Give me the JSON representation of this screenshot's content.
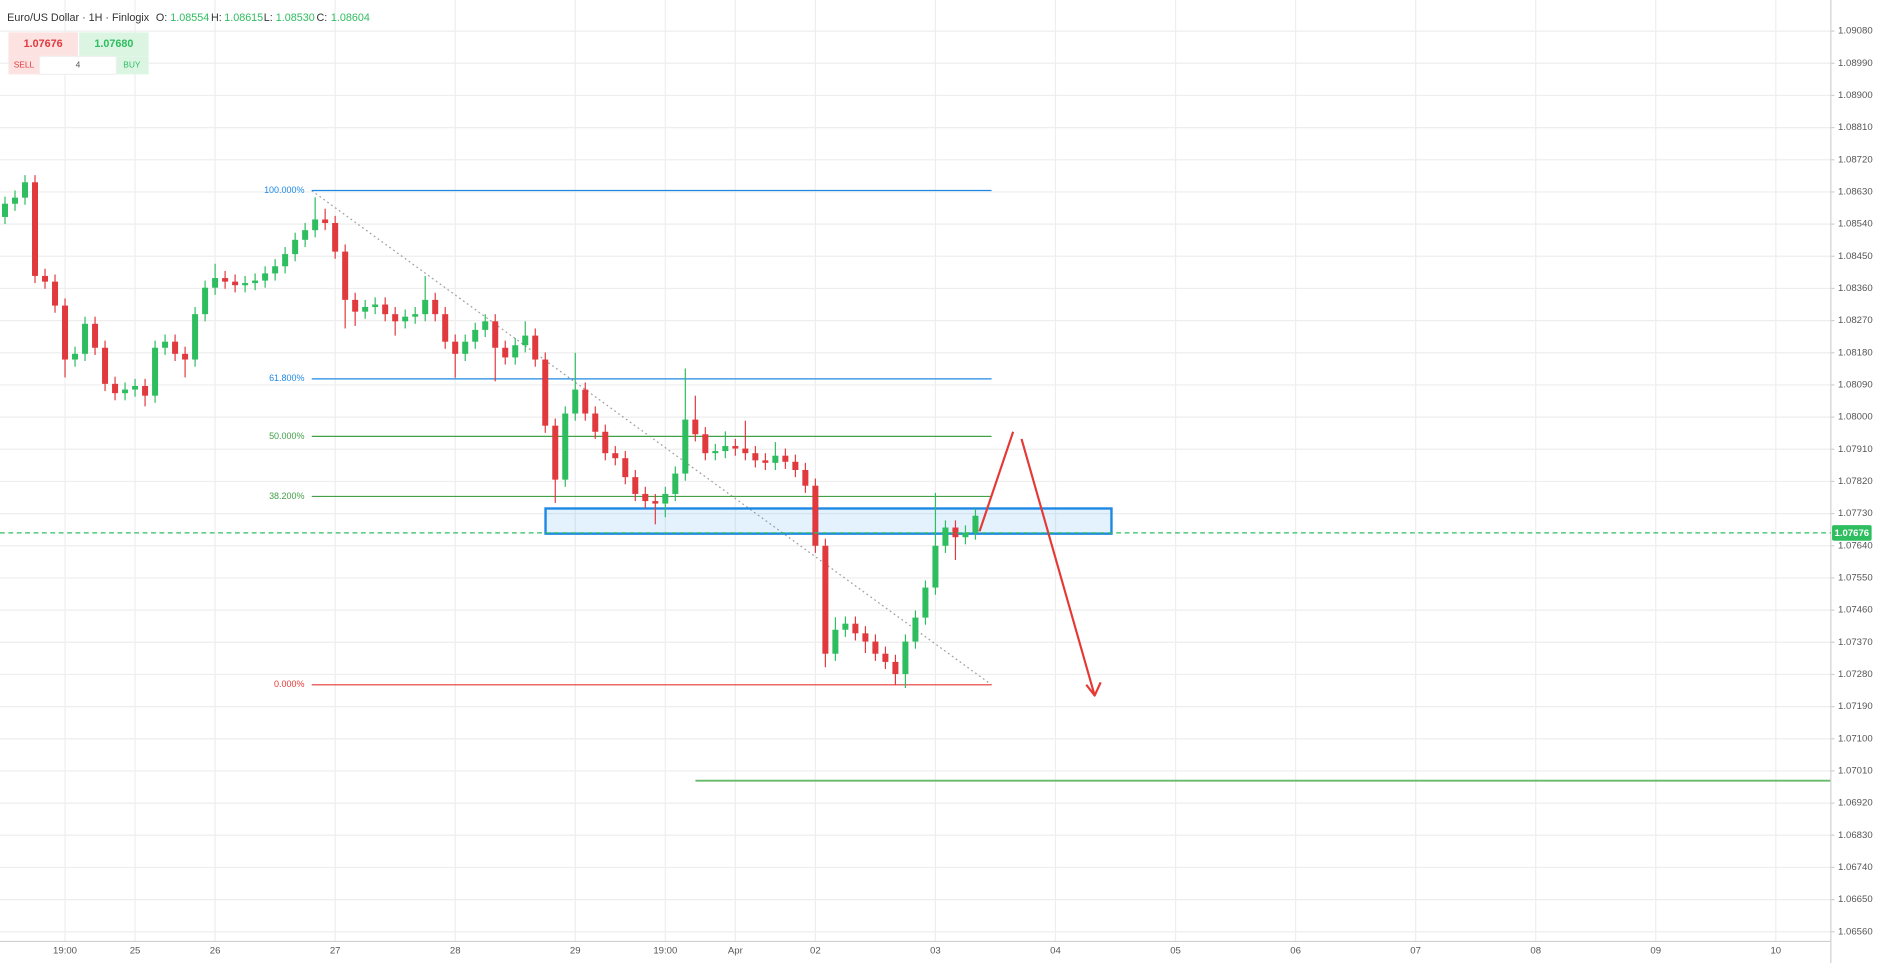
{
  "header": {
    "title": "Euro/US Dollar · 1H · Finlogix",
    "o_label": "O:",
    "o_value": "1.08554",
    "h_label": "H:",
    "h_value": "1.08615",
    "l_label": "L:",
    "l_value": "1.08530",
    "c_label": "C:",
    "c_value": "1.08604"
  },
  "trade": {
    "sell_price": "1.07676",
    "buy_price": "1.07680",
    "sell_label": "SELL",
    "quantity": "4",
    "buy_label": "BUY"
  },
  "chart_data": {
    "type": "candlestick",
    "up_color": "#2ebd5f",
    "down_color": "#e0393e",
    "grid": true,
    "ylim": [
      1.06533,
      1.09167
    ],
    "yticks": [
      {
        "value": 1.0908,
        "label": "1.09080"
      },
      {
        "value": 1.0899,
        "label": "1.08990"
      },
      {
        "value": 1.089,
        "label": "1.08900"
      },
      {
        "value": 1.0881,
        "label": "1.08810"
      },
      {
        "value": 1.0872,
        "label": "1.08720"
      },
      {
        "value": 1.0863,
        "label": "1.08630"
      },
      {
        "value": 1.0854,
        "label": "1.08540"
      },
      {
        "value": 1.0845,
        "label": "1.08450"
      },
      {
        "value": 1.0836,
        "label": "1.08360"
      },
      {
        "value": 1.0827,
        "label": "1.08270"
      },
      {
        "value": 1.0818,
        "label": "1.08180"
      },
      {
        "value": 1.0809,
        "label": "1.08090"
      },
      {
        "value": 1.08,
        "label": "1.08000"
      },
      {
        "value": 1.0791,
        "label": "1.07910"
      },
      {
        "value": 1.0782,
        "label": "1.07820"
      },
      {
        "value": 1.0773,
        "label": "1.07730"
      },
      {
        "value": 1.0764,
        "label": "1.07640"
      },
      {
        "value": 1.0755,
        "label": "1.07550"
      },
      {
        "value": 1.0746,
        "label": "1.07460"
      },
      {
        "value": 1.0737,
        "label": "1.07370"
      },
      {
        "value": 1.0728,
        "label": "1.07280"
      },
      {
        "value": 1.0719,
        "label": "1.07190"
      },
      {
        "value": 1.071,
        "label": "1.07100"
      },
      {
        "value": 1.0701,
        "label": "1.07010"
      },
      {
        "value": 1.0692,
        "label": "1.06920"
      },
      {
        "value": 1.0683,
        "label": "1.06830"
      },
      {
        "value": 1.0674,
        "label": "1.06740"
      },
      {
        "value": 1.0665,
        "label": "1.06650"
      },
      {
        "value": 1.0656,
        "label": "1.06560"
      }
    ],
    "current_price": {
      "value": 1.07676,
      "label": "1.07676",
      "color": "#2ebd5f"
    },
    "fib": {
      "levels": [
        {
          "label": "100.000%",
          "value": 1.08634,
          "color": "#1e88e5"
        },
        {
          "label": "61.800%",
          "value": 1.08107,
          "color": "#1e88e5"
        },
        {
          "label": "50.000%",
          "value": 1.07946,
          "color": "#43a047"
        },
        {
          "label": "38.200%",
          "value": 1.07778,
          "color": "#43a047"
        },
        {
          "label": "0.000%",
          "value": 1.07251,
          "color": "#e53935"
        }
      ]
    },
    "categories": [
      null,
      null,
      null,
      null,
      null,
      null,
      "19:00",
      null,
      null,
      null,
      null,
      null,
      null,
      "25",
      null,
      null,
      null,
      null,
      null,
      null,
      null,
      "26",
      null,
      null,
      null,
      null,
      null,
      null,
      null,
      null,
      null,
      null,
      null,
      "27",
      null,
      null,
      null,
      null,
      null,
      null,
      null,
      null,
      null,
      null,
      null,
      "28",
      null,
      null,
      null,
      null,
      null,
      null,
      null,
      null,
      null,
      null,
      null,
      "29",
      null,
      null,
      null,
      null,
      null,
      null,
      null,
      null,
      "19:00",
      null,
      null,
      null,
      null,
      null,
      null,
      "Apr",
      null,
      null,
      null,
      null,
      null,
      null,
      null,
      "02",
      null,
      null,
      null,
      null,
      null,
      null,
      null,
      null,
      null,
      null,
      null,
      "03",
      null,
      null,
      null,
      null,
      null,
      null,
      null,
      null,
      null,
      null,
      null,
      "04",
      null,
      null,
      null,
      null,
      null,
      null,
      null,
      null,
      null,
      null,
      null,
      "05",
      null,
      null,
      null,
      null,
      null,
      null,
      null,
      null,
      null,
      null,
      null,
      "06",
      null,
      null,
      null,
      null,
      null,
      null,
      null,
      null,
      null,
      null,
      null,
      "07",
      null,
      null,
      null,
      null,
      null,
      null,
      null,
      null,
      null,
      null,
      null,
      "08",
      null,
      null,
      null,
      null,
      null,
      null,
      null,
      null,
      null,
      null,
      null,
      "09",
      null,
      null,
      null,
      null,
      null,
      null,
      null,
      null,
      null,
      null,
      null,
      "10",
      null,
      null,
      null,
      null,
      null
    ],
    "candles": [
      [
        1.0856,
        1.08617,
        1.0854,
        1.08597
      ],
      [
        1.08597,
        1.08634,
        1.08577,
        1.08614
      ],
      [
        1.08614,
        1.08677,
        1.08594,
        1.08657
      ],
      [
        1.08657,
        1.08677,
        1.08375,
        1.08395
      ],
      [
        1.08395,
        1.08415,
        1.08359,
        1.08379
      ],
      [
        1.08379,
        1.08399,
        1.08292,
        1.08312
      ],
      [
        1.08312,
        1.08332,
        1.08111,
        1.08161
      ],
      [
        1.08161,
        1.08197,
        1.08141,
        1.08177
      ],
      [
        1.08177,
        1.08281,
        1.08157,
        1.08261
      ],
      [
        1.08261,
        1.08281,
        1.08174,
        1.08194
      ],
      [
        1.08194,
        1.08214,
        1.08073,
        1.08093
      ],
      [
        1.08093,
        1.08113,
        1.08047,
        1.08067
      ],
      [
        1.08067,
        1.08097,
        1.08047,
        1.08077
      ],
      [
        1.08077,
        1.08107,
        1.08057,
        1.08087
      ],
      [
        1.08087,
        1.08107,
        1.0803,
        1.0806
      ],
      [
        1.0806,
        1.08214,
        1.0804,
        1.08194
      ],
      [
        1.08194,
        1.08231,
        1.08174,
        1.08211
      ],
      [
        1.08211,
        1.08231,
        1.08157,
        1.08177
      ],
      [
        1.08177,
        1.08197,
        1.08111,
        1.08161
      ],
      [
        1.08161,
        1.08308,
        1.08141,
        1.08288
      ],
      [
        1.08288,
        1.08382,
        1.08268,
        1.08362
      ],
      [
        1.08362,
        1.08429,
        1.08342,
        1.08389
      ],
      [
        1.08389,
        1.08409,
        1.08359,
        1.08379
      ],
      [
        1.08379,
        1.08399,
        1.08349,
        1.08369
      ],
      [
        1.08369,
        1.08395,
        1.08349,
        1.08375
      ],
      [
        1.08375,
        1.08402,
        1.08355,
        1.08382
      ],
      [
        1.08382,
        1.08422,
        1.08362,
        1.08402
      ],
      [
        1.08402,
        1.08442,
        1.08382,
        1.08422
      ],
      [
        1.08422,
        1.08476,
        1.08402,
        1.08456
      ],
      [
        1.08456,
        1.08516,
        1.08436,
        1.08496
      ],
      [
        1.08496,
        1.08543,
        1.08476,
        1.08523
      ],
      [
        1.08523,
        1.08615,
        1.08503,
        1.08553
      ],
      [
        1.08553,
        1.08583,
        1.08523,
        1.08543
      ],
      [
        1.08543,
        1.08563,
        1.08443,
        1.08463
      ],
      [
        1.08463,
        1.08483,
        1.08248,
        1.08328
      ],
      [
        1.08328,
        1.08348,
        1.08255,
        1.08295
      ],
      [
        1.08295,
        1.08328,
        1.08275,
        1.08308
      ],
      [
        1.08308,
        1.08335,
        1.08288,
        1.08315
      ],
      [
        1.08315,
        1.08335,
        1.08268,
        1.08288
      ],
      [
        1.08288,
        1.08308,
        1.08228,
        1.08268
      ],
      [
        1.08268,
        1.08301,
        1.08248,
        1.08281
      ],
      [
        1.08281,
        1.08308,
        1.08261,
        1.08288
      ],
      [
        1.08288,
        1.08395,
        1.08268,
        1.08328
      ],
      [
        1.08328,
        1.08348,
        1.08268,
        1.08288
      ],
      [
        1.08288,
        1.08308,
        1.08191,
        1.08211
      ],
      [
        1.08211,
        1.08231,
        1.0811,
        1.08177
      ],
      [
        1.08177,
        1.08231,
        1.08157,
        1.08211
      ],
      [
        1.08211,
        1.08264,
        1.08191,
        1.08244
      ],
      [
        1.08244,
        1.08288,
        1.08224,
        1.08268
      ],
      [
        1.08268,
        1.08288,
        1.081,
        1.08194
      ],
      [
        1.08194,
        1.08214,
        1.08147,
        1.08167
      ],
      [
        1.08167,
        1.08221,
        1.08147,
        1.08201
      ],
      [
        1.08201,
        1.08268,
        1.08181,
        1.08228
      ],
      [
        1.08228,
        1.08248,
        1.08141,
        1.08161
      ],
      [
        1.08161,
        1.08181,
        1.07956,
        1.07976
      ],
      [
        1.07976,
        1.07996,
        1.0776,
        1.07825
      ],
      [
        1.07825,
        1.0803,
        1.07805,
        1.0801
      ],
      [
        1.0801,
        1.0818,
        1.0799,
        1.08077
      ],
      [
        1.08077,
        1.08097,
        1.0799,
        1.0801
      ],
      [
        1.0801,
        1.0803,
        1.07939,
        1.07959
      ],
      [
        1.07959,
        1.07979,
        1.07879,
        1.07899
      ],
      [
        1.07899,
        1.07919,
        1.07865,
        1.07885
      ],
      [
        1.07885,
        1.07905,
        1.07812,
        1.07832
      ],
      [
        1.07832,
        1.07852,
        1.07765,
        1.07785
      ],
      [
        1.07785,
        1.07805,
        1.07745,
        1.07765
      ],
      [
        1.07765,
        1.07785,
        1.077,
        1.07758
      ],
      [
        1.07758,
        1.07805,
        1.0772,
        1.07785
      ],
      [
        1.07785,
        1.07862,
        1.07765,
        1.07842
      ],
      [
        1.07842,
        1.08136,
        1.07822,
        1.07993
      ],
      [
        1.07993,
        1.0806,
        1.07932,
        1.07952
      ],
      [
        1.07952,
        1.07972,
        1.07879,
        1.07899
      ],
      [
        1.07899,
        1.07925,
        1.07879,
        1.07905
      ],
      [
        1.07905,
        1.0796,
        1.07885,
        1.07919
      ],
      [
        1.07919,
        1.07939,
        1.07892,
        1.07912
      ],
      [
        1.07912,
        1.0799,
        1.07879,
        1.07899
      ],
      [
        1.07899,
        1.07919,
        1.07859,
        1.07879
      ],
      [
        1.07879,
        1.07899,
        1.07852,
        1.07872
      ],
      [
        1.07872,
        1.0793,
        1.07852,
        1.07892
      ],
      [
        1.07892,
        1.07912,
        1.07855,
        1.07875
      ],
      [
        1.07875,
        1.07895,
        1.07832,
        1.07852
      ],
      [
        1.07852,
        1.07872,
        1.07788,
        1.07808
      ],
      [
        1.07808,
        1.07828,
        1.0762,
        1.0764
      ],
      [
        1.0764,
        1.0766,
        1.073,
        1.07338
      ],
      [
        1.07338,
        1.0744,
        1.07318,
        1.07405
      ],
      [
        1.07405,
        1.07442,
        1.07385,
        1.07422
      ],
      [
        1.07422,
        1.07442,
        1.07375,
        1.07395
      ],
      [
        1.07395,
        1.07415,
        1.0734,
        1.07372
      ],
      [
        1.07372,
        1.07392,
        1.07318,
        1.07338
      ],
      [
        1.07338,
        1.07358,
        1.07295,
        1.07315
      ],
      [
        1.07315,
        1.07335,
        1.0725,
        1.07281
      ],
      [
        1.07281,
        1.07392,
        1.07242,
        1.07372
      ],
      [
        1.07372,
        1.07459,
        1.07352,
        1.07439
      ],
      [
        1.07439,
        1.07543,
        1.07419,
        1.07523
      ],
      [
        1.07523,
        1.07788,
        1.07503,
        1.0764
      ],
      [
        1.0764,
        1.07711,
        1.0762,
        1.07691
      ],
      [
        1.07691,
        1.07711,
        1.076,
        1.07664
      ],
      [
        1.07664,
        1.07697,
        1.07644,
        1.07677
      ],
      [
        1.07677,
        1.07744,
        1.07657,
        1.07724
      ],
      null,
      null,
      null,
      null,
      null,
      null,
      null,
      null,
      null,
      null,
      null,
      null,
      null,
      null,
      null,
      null,
      null,
      null,
      null,
      null,
      null,
      null,
      null,
      null,
      null,
      null,
      null,
      null,
      null,
      null,
      null,
      null,
      null,
      null,
      null,
      null,
      null,
      null,
      null,
      null,
      null,
      null,
      null,
      null,
      null,
      null,
      null,
      null,
      null,
      null,
      null,
      null,
      null,
      null,
      null,
      null,
      null,
      null,
      null,
      null,
      null,
      null,
      null,
      null,
      null,
      null,
      null,
      null,
      null,
      null,
      null,
      null,
      null,
      null,
      null,
      null,
      null,
      null,
      null,
      null,
      null,
      null,
      null,
      null,
      null
    ]
  }
}
